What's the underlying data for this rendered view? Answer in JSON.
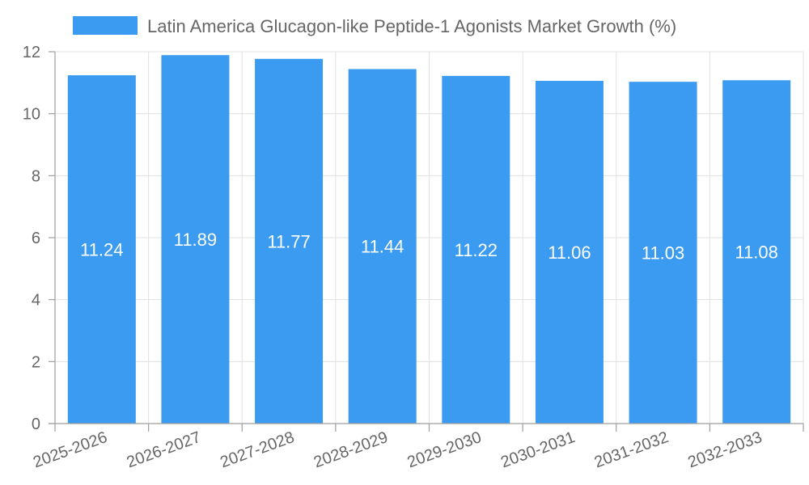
{
  "chart_data": {
    "type": "bar",
    "title": "",
    "legend": {
      "label": "Latin America Glucagon-like Peptide-1 Agonists Market Growth (%)",
      "position": "top",
      "color": "#3a9bf0"
    },
    "categories": [
      "2025-2026",
      "2026-2027",
      "2027-2028",
      "2028-2029",
      "2029-2030",
      "2030-2031",
      "2031-2032",
      "2032-2033"
    ],
    "series": [
      {
        "name": "Latin America Glucagon-like Peptide-1 Agonists Market Growth (%)",
        "values": [
          11.24,
          11.89,
          11.77,
          11.44,
          11.22,
          11.06,
          11.03,
          11.08
        ],
        "color": "#3a9bf0"
      }
    ],
    "data_labels": [
      "11.24",
      "11.89",
      "11.77",
      "11.44",
      "11.22",
      "11.06",
      "11.03",
      "11.08"
    ],
    "y_ticks": [
      "0",
      "2",
      "4",
      "6",
      "8",
      "10",
      "12"
    ],
    "ylim": [
      0,
      12
    ],
    "grid": true,
    "xlabel": "",
    "ylabel": ""
  }
}
